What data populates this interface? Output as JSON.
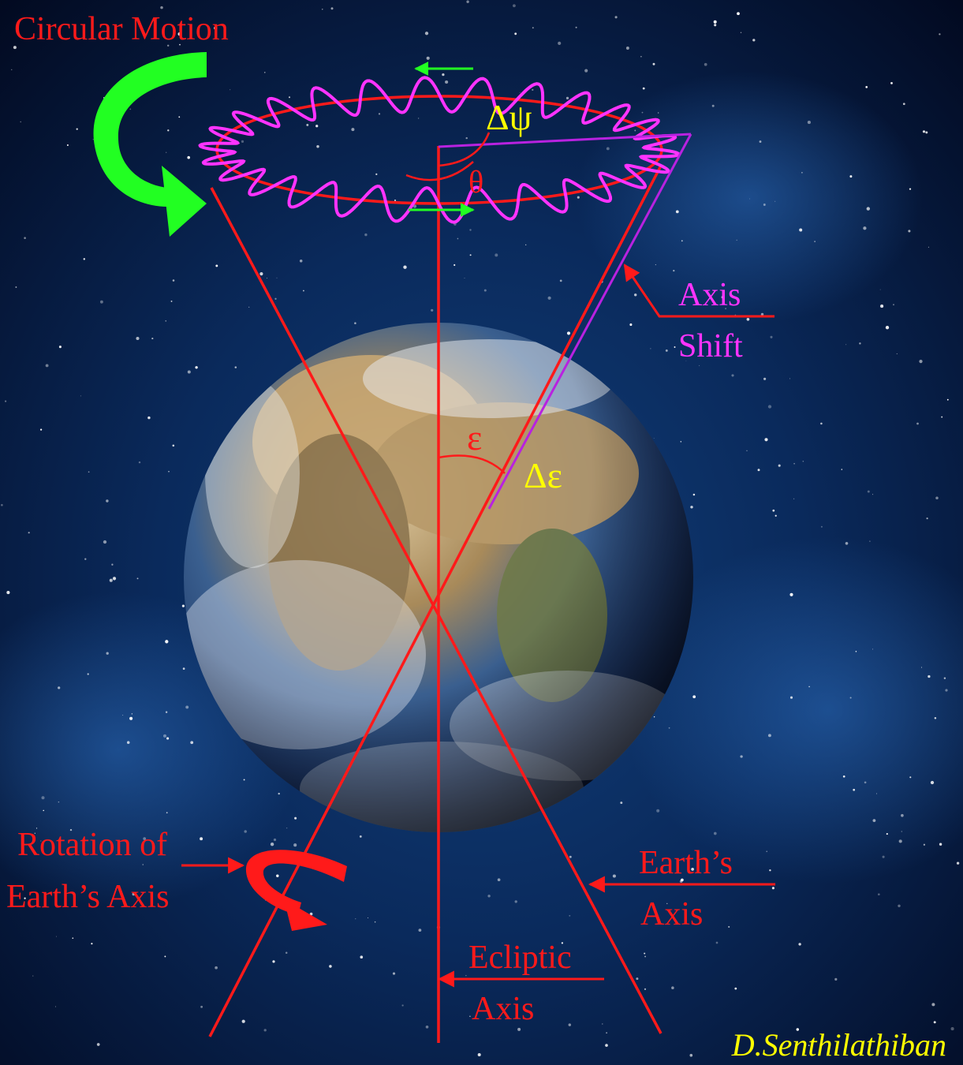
{
  "labels": {
    "circular_motion": "Circular Motion",
    "delta_psi": "Δψ",
    "theta": "θ",
    "axis_shift_line1": "Axis",
    "axis_shift_line2": "Shift",
    "epsilon": "ε",
    "delta_epsilon": "Δε",
    "rotation_line1": "Rotation of",
    "rotation_line2": "Earth’s Axis",
    "earths_axis_line1": "Earth’s",
    "earths_axis_line2": "Axis",
    "ecliptic_line1": "Ecliptic",
    "ecliptic_line2": "Axis",
    "author": "D.Senthilathiban"
  },
  "colors": {
    "axis_red": "#ff1a1a",
    "label_red": "#ff1a1a",
    "nutation_magenta": "#ff33ff",
    "symbol_yellow": "#ffff00",
    "arrow_green": "#22ff22",
    "space": "#04122e"
  },
  "icons": {
    "circular_arrow": "curved-green-arrow",
    "rotation_arrow": "curved-red-arrow",
    "earth": "earth-globe"
  }
}
